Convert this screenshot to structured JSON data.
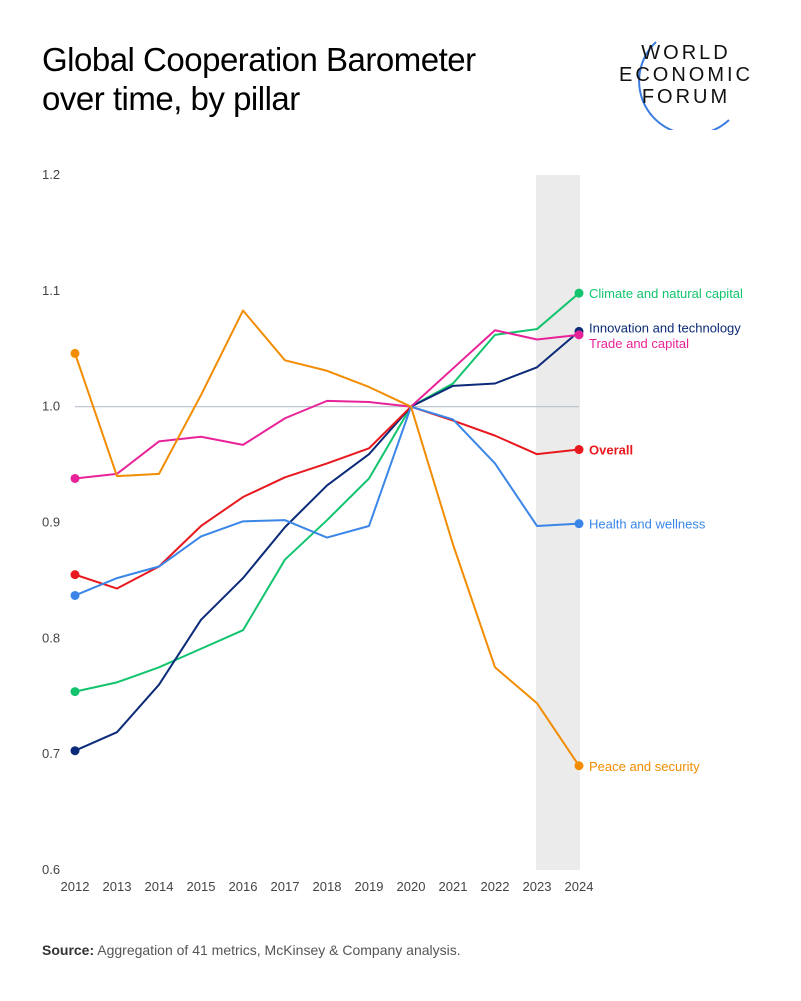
{
  "title_line1": "Global Cooperation Barometer",
  "title_line2": "over time, by pillar",
  "logo": {
    "line1": "WORLD",
    "line2": "ECONOMIC",
    "line3": "FORUM"
  },
  "source_label": "Source:",
  "source_text": " Aggregation of 41 metrics, McKinsey & Company analysis.",
  "chart_data": {
    "type": "line",
    "x": [
      2012,
      2013,
      2014,
      2015,
      2016,
      2017,
      2018,
      2019,
      2020,
      2021,
      2022,
      2023,
      2024
    ],
    "ylim": [
      0.6,
      1.2
    ],
    "yticks": [
      "0.6",
      "0.7",
      "0.8",
      "0.9",
      "1.0",
      "1.1",
      "1.2"
    ],
    "reference_line": 1.0,
    "highlighted_years": [
      2023,
      2024
    ],
    "grid": false,
    "series": [
      {
        "name": "Climate and natural capital",
        "color": "#12c46e",
        "values": [
          0.754,
          0.762,
          0.775,
          0.791,
          0.807,
          0.868,
          0.902,
          0.938,
          1.0,
          1.02,
          1.062,
          1.067,
          1.098
        ]
      },
      {
        "name": "Innovation and technology",
        "color": "#0b2a78",
        "values": [
          0.703,
          0.719,
          0.76,
          0.816,
          0.852,
          0.896,
          0.932,
          0.959,
          1.0,
          1.018,
          1.02,
          1.034,
          1.065
        ]
      },
      {
        "name": "Trade and capital",
        "color": "#e8239a",
        "values": [
          0.938,
          0.942,
          0.97,
          0.974,
          0.967,
          0.99,
          1.005,
          1.004,
          1.0,
          1.033,
          1.066,
          1.058,
          1.062
        ]
      },
      {
        "name": "Overall",
        "color": "#e8191e",
        "values": [
          0.855,
          0.843,
          0.862,
          0.897,
          0.922,
          0.939,
          0.951,
          0.964,
          1.0,
          0.988,
          0.975,
          0.959,
          0.963
        ]
      },
      {
        "name": "Health and wellness",
        "color": "#3a86e8",
        "values": [
          0.837,
          0.852,
          0.862,
          0.888,
          0.901,
          0.902,
          0.887,
          0.897,
          1.0,
          0.989,
          0.951,
          0.897,
          0.899
        ]
      },
      {
        "name": "Peace and security",
        "color": "#f28c00",
        "values": [
          1.046,
          0.94,
          0.942,
          1.01,
          1.083,
          1.04,
          1.031,
          1.017,
          1.0,
          0.881,
          0.775,
          0.744,
          0.69
        ]
      }
    ]
  }
}
